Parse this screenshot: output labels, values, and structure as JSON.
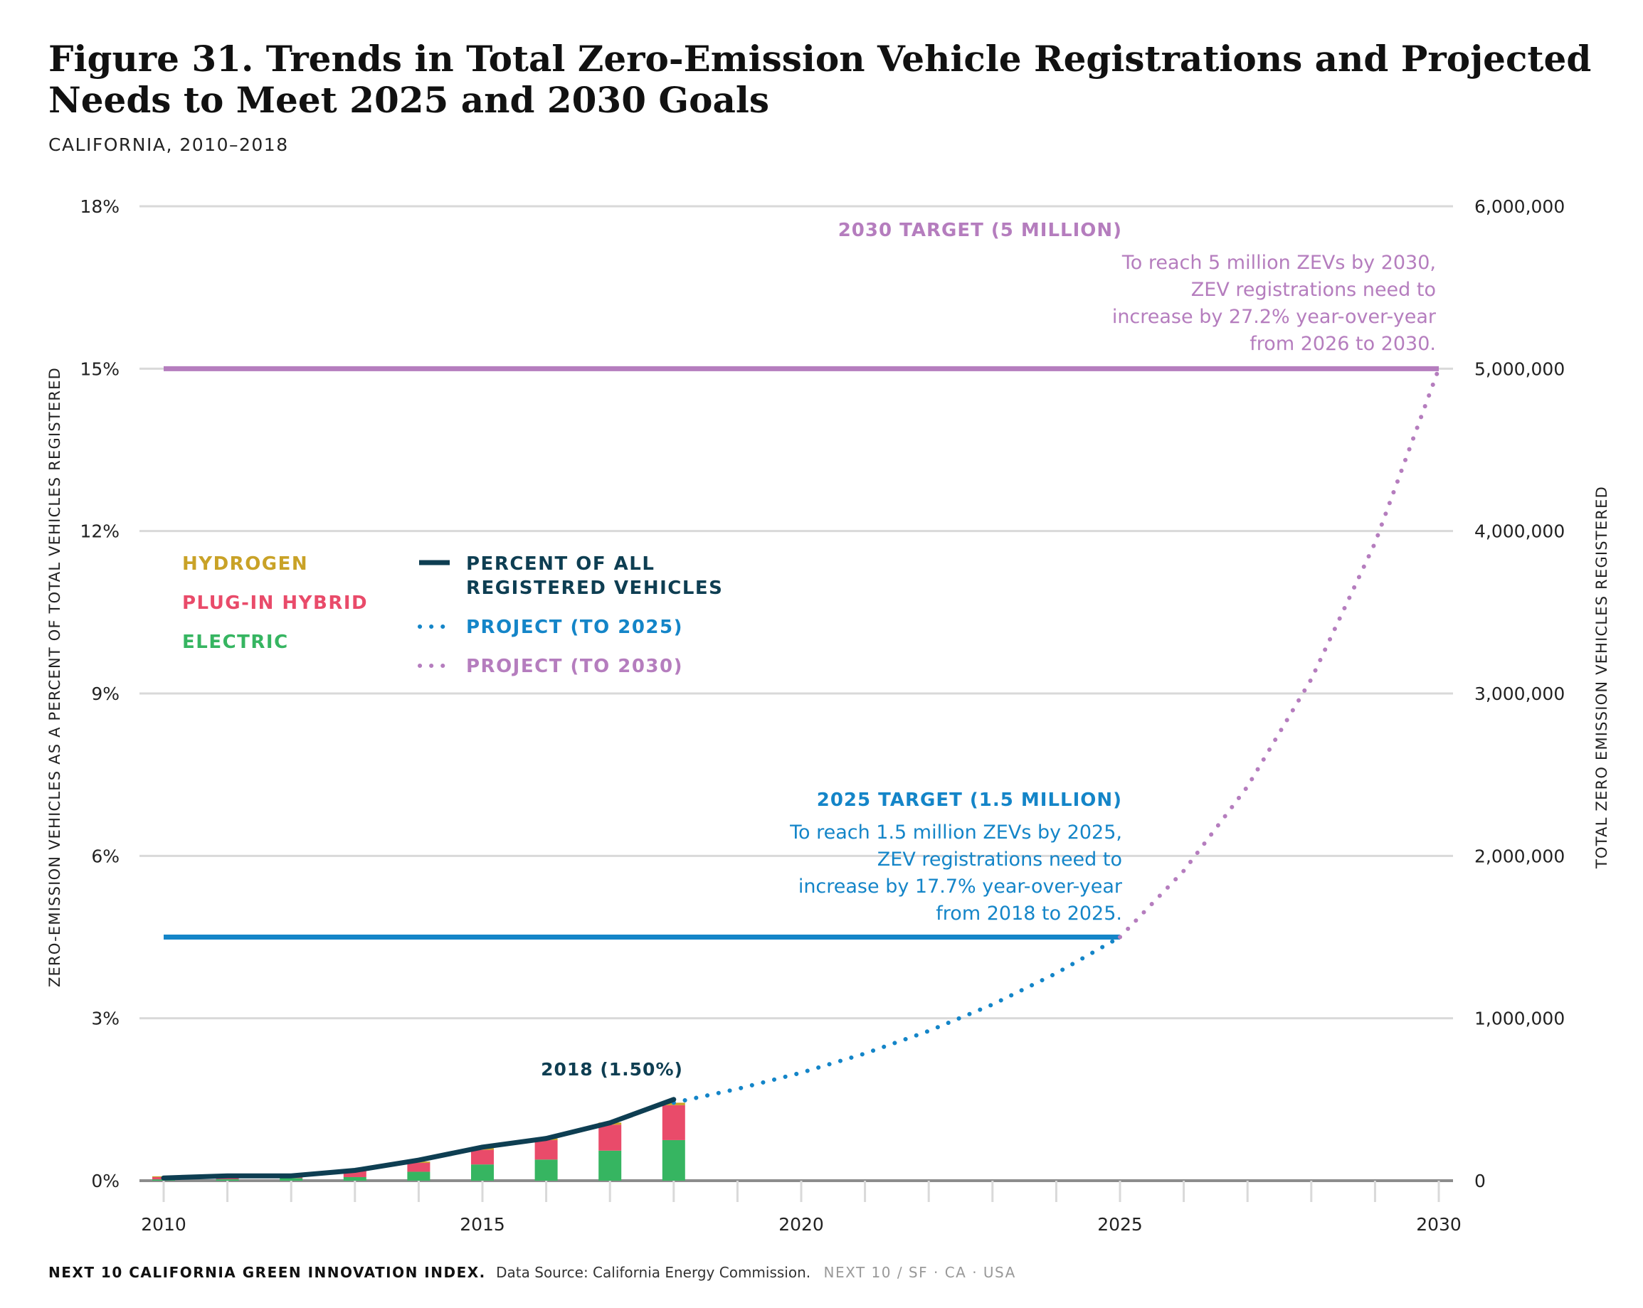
{
  "header": {
    "title_line1": "Figure 31. Trends in Total Zero-Emission Vehicle Registrations and Projected",
    "title_line2": "Needs to Meet 2025 and 2030 Goals",
    "subtitle": "CALIFORNIA, 2010–2018"
  },
  "footer": {
    "brand": "NEXT 10 CALIFORNIA GREEN INNOVATION INDEX.",
    "source": "Data Source: California Energy Commission.",
    "org": "NEXT 10  /  SF · CA · USA"
  },
  "colors": {
    "hydrogen": "#C9A227",
    "plugin_hybrid": "#E94B6A",
    "electric": "#36B561",
    "percent_line": "#0E3E52",
    "project_2025": "#1485C8",
    "project_2030": "#B57DBE",
    "grid": "#D9D9D9",
    "baseline": "#8C8C8C"
  },
  "chart_data": {
    "type": "bar",
    "x_axis": {
      "range": [
        2010,
        2030
      ],
      "tick_labels": [
        "2010",
        "2015",
        "2020",
        "2025",
        "2030"
      ]
    },
    "y_left": {
      "label": "ZERO-EMISSION VEHICLES AS A PERCENT OF TOTAL VEHICLES REGISTERED",
      "range": [
        0,
        18
      ],
      "tick_labels": [
        "0%",
        "3%",
        "6%",
        "9%",
        "12%",
        "15%",
        "18%"
      ]
    },
    "y_right": {
      "label": "TOTAL ZERO EMISSION VEHICLES REGISTERED",
      "range": [
        0,
        6000000
      ],
      "tick_labels": [
        "0",
        "1,000,000",
        "2,000,000",
        "3,000,000",
        "4,000,000",
        "5,000,000",
        "6,000,000"
      ]
    },
    "grid": true,
    "bars": {
      "years": [
        2010,
        2011,
        2012,
        2013,
        2014,
        2015,
        2016,
        2017,
        2018
      ],
      "electric": [
        8000,
        9000,
        16000,
        22000,
        55000,
        100000,
        130000,
        185000,
        250000
      ],
      "plugin_hybrid": [
        14000,
        12000,
        18000,
        40000,
        55000,
        90000,
        120000,
        160000,
        215000
      ],
      "hydrogen": [
        5000,
        4000,
        4000,
        8000,
        8000,
        10000,
        10000,
        13000,
        15000
      ]
    },
    "percent_line": {
      "years": [
        2010,
        2011,
        2012,
        2013,
        2014,
        2015,
        2016,
        2017,
        2018
      ],
      "values": [
        0.05,
        0.09,
        0.09,
        0.19,
        0.38,
        0.62,
        0.78,
        1.07,
        1.5
      ]
    },
    "project_2025": {
      "years": [
        2018,
        2019,
        2020,
        2021,
        2022,
        2023,
        2024,
        2025
      ],
      "values": [
        480000,
        565000,
        665000,
        783000,
        922000,
        1085000,
        1277000,
        1500000
      ]
    },
    "project_2030": {
      "years": [
        2025,
        2026,
        2027,
        2028,
        2029,
        2030
      ],
      "values": [
        1500000,
        1908000,
        2427000,
        3088000,
        3927000,
        5000000
      ]
    },
    "target_2025": {
      "value": 1500000,
      "x_range": [
        2010,
        2025
      ]
    },
    "target_2030": {
      "value": 5000000,
      "x_range": [
        2010,
        2030
      ]
    },
    "legend_left": [
      "HYDROGEN",
      "PLUG-IN HYBRID",
      "ELECTRIC"
    ],
    "legend_right": [
      "PERCENT OF ALL",
      "REGISTERED VEHICLES",
      "PROJECT (TO 2025)",
      "PROJECT (TO 2030)"
    ],
    "annotations": {
      "point_2018": "2018 (1.50%)",
      "target_2025_title": "2025 TARGET (1.5 MILLION)",
      "target_2025_lines": [
        "To reach 1.5 million ZEVs by 2025,",
        "ZEV registrations need to",
        "increase by 17.7% year-over-year",
        "from 2018 to 2025."
      ],
      "target_2030_title": "2030 TARGET (5 MILLION)",
      "target_2030_lines": [
        "To reach 5 million ZEVs by 2030,",
        "ZEV registrations need to",
        "increase by 27.2% year-over-year",
        "from 2026 to 2030."
      ]
    }
  }
}
